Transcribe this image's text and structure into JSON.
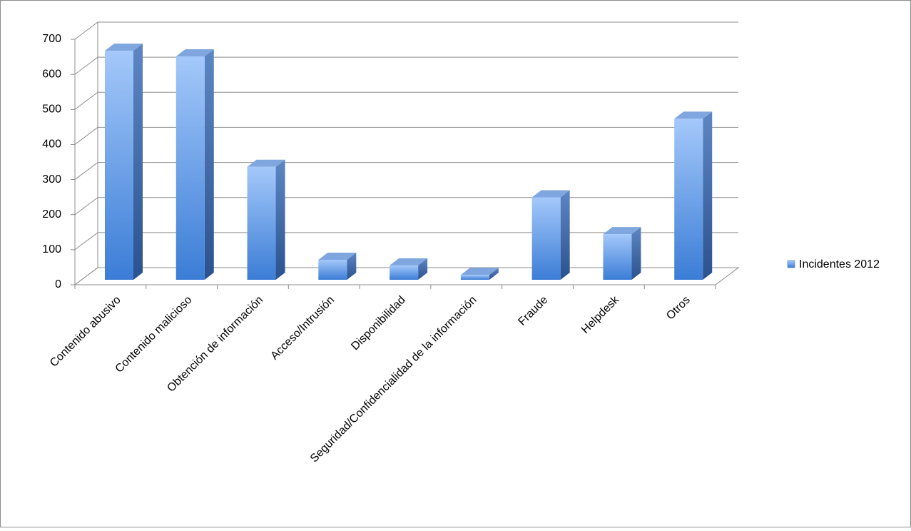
{
  "chart_data": {
    "type": "bar3d",
    "categories": [
      "Contenido abusivo",
      "Contenido malicioso",
      "Obtención de información",
      "Acceso/Intrusión",
      "Disponibilidad",
      "Seguridad/Confidencialidad de la información",
      "Fraude",
      "Helpdesk",
      "Otros"
    ],
    "series": [
      {
        "name": "Incidentes 2012",
        "color": "#4f8ee0",
        "values": [
          653,
          637,
          322,
          57,
          41,
          14,
          235,
          130,
          459
        ]
      }
    ],
    "ylim": [
      0,
      700
    ],
    "yticks": [
      0,
      100,
      200,
      300,
      400,
      500,
      600,
      700
    ],
    "grid": true,
    "legend": "right"
  }
}
